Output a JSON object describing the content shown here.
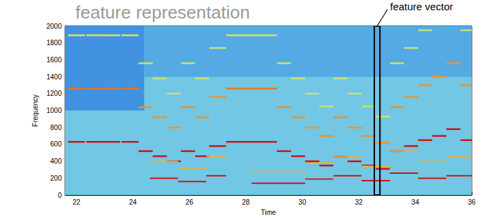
{
  "chart_data": {
    "type": "heatmap",
    "title": "feature representation",
    "x_label": "Time",
    "y_label": "Frequency",
    "xlim": [
      21.6,
      36
    ],
    "xticks": [
      22,
      24,
      26,
      28,
      30,
      32,
      34,
      36
    ],
    "ylim": [
      0,
      2000
    ],
    "yticks": [
      0,
      200,
      400,
      600,
      800,
      1000,
      1200,
      1400,
      1600,
      1800,
      2000
    ],
    "color_range": [
      0,
      1
    ],
    "annotation": {
      "text": "feature vector",
      "x": [
        32.55,
        32.75
      ]
    },
    "cells": [
      [
        21.6,
        36,
        0,
        2000,
        0.35
      ],
      [
        21.6,
        24.4,
        1000,
        2000,
        0.18
      ],
      [
        24.4,
        36,
        1400,
        2000,
        0.25
      ],
      [
        21.7,
        22.3,
        620,
        640,
        1
      ],
      [
        21.7,
        22.3,
        1250,
        1270,
        0.85
      ],
      [
        21.7,
        22.3,
        1880,
        1900,
        0.65
      ],
      [
        22.35,
        22.95,
        620,
        640,
        1
      ],
      [
        22.35,
        22.95,
        1250,
        1270,
        0.85
      ],
      [
        22.35,
        22.95,
        1880,
        1900,
        0.65
      ],
      [
        22.95,
        23.55,
        620,
        640,
        1
      ],
      [
        22.95,
        23.55,
        1250,
        1270,
        0.85
      ],
      [
        22.95,
        23.55,
        1880,
        1900,
        0.65
      ],
      [
        23.6,
        24.2,
        620,
        640,
        1
      ],
      [
        23.6,
        24.2,
        1250,
        1270,
        0.85
      ],
      [
        23.6,
        24.2,
        1880,
        1900,
        0.65
      ],
      [
        24.2,
        24.7,
        510,
        530,
        1
      ],
      [
        24.2,
        24.7,
        1030,
        1050,
        0.8
      ],
      [
        24.2,
        24.7,
        1550,
        1570,
        0.6
      ],
      [
        24.7,
        25.2,
        450,
        470,
        1
      ],
      [
        24.7,
        25.2,
        910,
        930,
        0.8
      ],
      [
        24.7,
        25.2,
        1370,
        1390,
        0.6
      ],
      [
        25.2,
        25.7,
        390,
        410,
        1
      ],
      [
        25.2,
        25.7,
        790,
        810,
        0.8
      ],
      [
        25.2,
        25.7,
        1190,
        1210,
        0.6
      ],
      [
        25.7,
        26.2,
        510,
        530,
        1
      ],
      [
        25.7,
        26.2,
        1030,
        1050,
        0.8
      ],
      [
        25.7,
        26.2,
        1550,
        1570,
        0.6
      ],
      [
        26.2,
        26.7,
        450,
        470,
        1
      ],
      [
        26.2,
        26.7,
        910,
        930,
        0.8
      ],
      [
        26.2,
        26.7,
        1370,
        1390,
        0.6
      ],
      [
        26.7,
        27.3,
        570,
        590,
        1
      ],
      [
        26.7,
        27.3,
        1150,
        1170,
        0.8
      ],
      [
        26.7,
        27.3,
        1730,
        1750,
        0.6
      ],
      [
        27.3,
        27.9,
        620,
        640,
        1
      ],
      [
        27.3,
        27.9,
        1250,
        1270,
        0.85
      ],
      [
        27.3,
        27.9,
        1880,
        1900,
        0.65
      ],
      [
        27.9,
        28.5,
        620,
        640,
        1
      ],
      [
        27.9,
        28.5,
        1250,
        1270,
        0.85
      ],
      [
        27.9,
        28.5,
        1880,
        1900,
        0.65
      ],
      [
        28.5,
        29.1,
        620,
        640,
        1
      ],
      [
        28.5,
        29.1,
        1250,
        1270,
        0.85
      ],
      [
        28.5,
        29.1,
        1880,
        1900,
        0.65
      ],
      [
        29.1,
        29.6,
        510,
        530,
        1
      ],
      [
        29.1,
        29.6,
        1030,
        1050,
        0.8
      ],
      [
        29.1,
        29.6,
        1550,
        1570,
        0.6
      ],
      [
        29.6,
        30.1,
        450,
        470,
        1
      ],
      [
        29.6,
        30.1,
        910,
        930,
        0.8
      ],
      [
        29.6,
        30.1,
        1370,
        1390,
        0.6
      ],
      [
        30.1,
        30.6,
        390,
        410,
        1
      ],
      [
        30.1,
        30.6,
        790,
        810,
        0.8
      ],
      [
        30.1,
        30.6,
        1190,
        1210,
        0.6
      ],
      [
        30.6,
        31.1,
        340,
        360,
        1
      ],
      [
        30.6,
        31.1,
        690,
        710,
        0.8
      ],
      [
        30.6,
        31.1,
        1040,
        1060,
        0.6
      ],
      [
        31.1,
        31.6,
        450,
        470,
        1
      ],
      [
        31.1,
        31.6,
        910,
        930,
        0.8
      ],
      [
        31.1,
        31.6,
        1370,
        1390,
        0.6
      ],
      [
        31.6,
        32.1,
        390,
        410,
        1
      ],
      [
        31.6,
        32.1,
        790,
        810,
        0.8
      ],
      [
        31.6,
        32.1,
        1190,
        1210,
        0.6
      ],
      [
        32.1,
        32.6,
        340,
        360,
        1
      ],
      [
        32.1,
        32.6,
        690,
        710,
        0.8
      ],
      [
        32.1,
        32.6,
        1040,
        1060,
        0.6
      ],
      [
        32.6,
        33.1,
        300,
        320,
        1
      ],
      [
        32.6,
        33.1,
        610,
        630,
        0.8
      ],
      [
        32.6,
        33.1,
        920,
        940,
        0.6
      ],
      [
        33.1,
        33.6,
        510,
        530,
        1
      ],
      [
        33.1,
        33.6,
        1030,
        1050,
        0.8
      ],
      [
        33.1,
        33.6,
        1550,
        1570,
        0.6
      ],
      [
        33.6,
        34.1,
        570,
        590,
        1
      ],
      [
        33.6,
        34.1,
        1150,
        1170,
        0.8
      ],
      [
        33.6,
        34.1,
        1730,
        1750,
        0.6
      ],
      [
        34.1,
        34.6,
        640,
        660,
        1
      ],
      [
        34.1,
        34.6,
        1290,
        1310,
        0.8
      ],
      [
        34.1,
        34.6,
        1940,
        1960,
        0.6
      ],
      [
        34.6,
        35.1,
        690,
        710,
        1
      ],
      [
        34.6,
        35.1,
        1390,
        1410,
        0.8
      ],
      [
        35.1,
        35.6,
        770,
        790,
        1
      ],
      [
        35.1,
        35.6,
        1550,
        1570,
        0.8
      ],
      [
        35.6,
        36,
        640,
        660,
        1
      ],
      [
        35.6,
        36,
        1290,
        1310,
        0.8
      ],
      [
        35.6,
        36,
        1940,
        1960,
        0.6
      ],
      [
        24.6,
        25.6,
        192,
        208,
        1
      ],
      [
        24.6,
        25.6,
        392,
        408,
        0.75
      ],
      [
        25.6,
        26.6,
        152,
        168,
        1
      ],
      [
        25.6,
        26.6,
        312,
        328,
        0.75
      ],
      [
        26.6,
        27.3,
        222,
        238,
        1
      ],
      [
        26.6,
        27.3,
        452,
        468,
        0.75
      ],
      [
        28.2,
        30.1,
        132,
        148,
        1
      ],
      [
        28.2,
        30.1,
        272,
        288,
        0.75
      ],
      [
        30.1,
        31.1,
        182,
        198,
        1
      ],
      [
        30.1,
        31.1,
        372,
        388,
        0.75
      ],
      [
        31.1,
        32.1,
        222,
        238,
        1
      ],
      [
        31.1,
        32.1,
        452,
        468,
        0.75
      ],
      [
        32.1,
        33.1,
        162,
        178,
        1
      ],
      [
        32.1,
        33.1,
        332,
        348,
        0.75
      ],
      [
        33.1,
        34.1,
        252,
        268,
        1
      ],
      [
        33.1,
        34.1,
        512,
        528,
        0.75
      ],
      [
        34.1,
        35.1,
        192,
        208,
        1
      ],
      [
        34.1,
        35.1,
        392,
        408,
        0.75
      ],
      [
        35.1,
        36,
        222,
        238,
        1
      ],
      [
        35.1,
        36,
        452,
        468,
        0.75
      ]
    ]
  }
}
